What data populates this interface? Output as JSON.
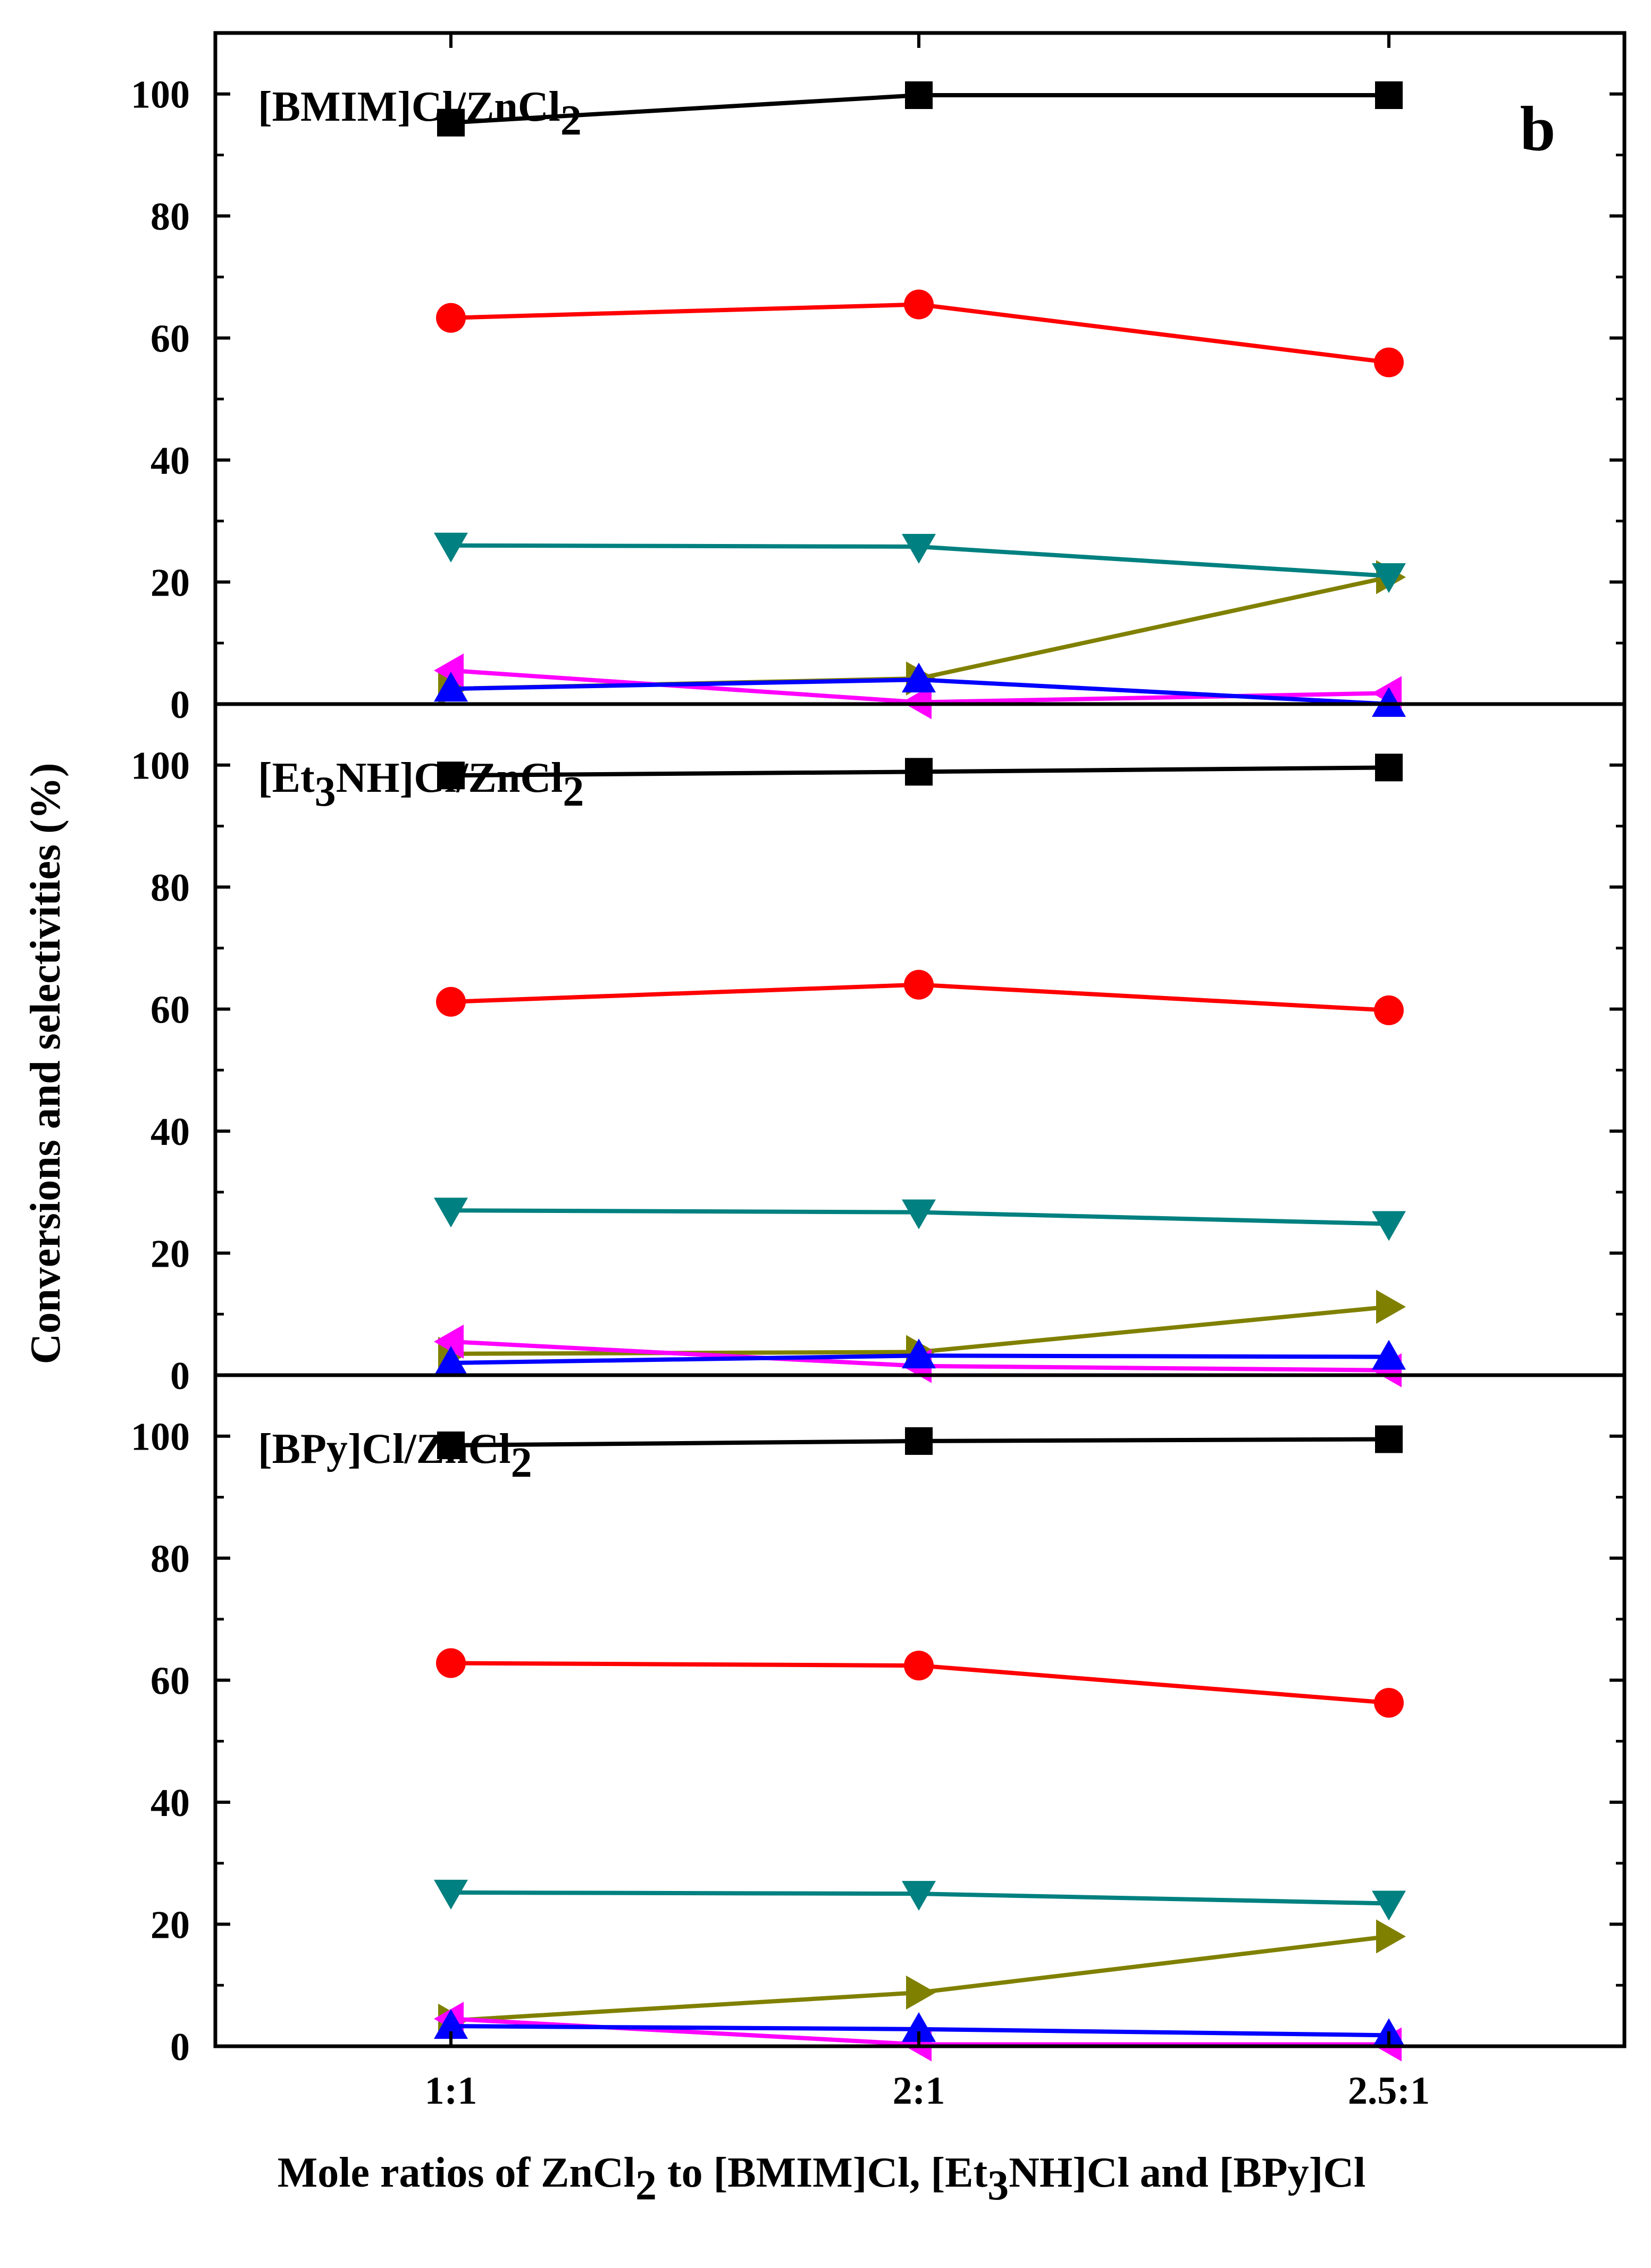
{
  "chart_data": {
    "type": "line",
    "panel_letter": "b",
    "xlabel": {
      "parts": [
        {
          "text": "Mole ratios of ZnCl",
          "sub": false
        },
        {
          "text": "2",
          "sub": true
        },
        {
          "text": " to [BMIM]Cl, [Et",
          "sub": false
        },
        {
          "text": "3",
          "sub": true
        },
        {
          "text": "NH]Cl and [BPy]Cl",
          "sub": false
        }
      ]
    },
    "ylabel": "Conversions and selectivities (%)",
    "categories": [
      "1:1",
      "2:1",
      "2.5:1"
    ],
    "yticks": [
      "0",
      "20",
      "40",
      "60",
      "80",
      "100"
    ],
    "ylim": [
      0,
      110
    ],
    "panels": [
      {
        "title_parts": [
          {
            "text": "[BMIM]Cl/ZnCl",
            "sub": false
          },
          {
            "text": "2",
            "sub": true
          }
        ],
        "series": [
          {
            "name": "black-square",
            "color": "#000000",
            "marker": "square",
            "values": [
              95.3,
              99.8,
              99.8
            ]
          },
          {
            "name": "red-circle",
            "color": "#ff0000",
            "marker": "circle",
            "values": [
              63.3,
              65.5,
              56.0
            ]
          },
          {
            "name": "teal-down-triangle",
            "color": "#008080",
            "marker": "triangle-down",
            "values": [
              26.0,
              25.8,
              21.0
            ]
          },
          {
            "name": "blue-up-triangle",
            "color": "#0000ff",
            "marker": "triangle-up",
            "values": [
              2.5,
              4.0,
              0.0
            ]
          },
          {
            "name": "magenta-left-triangle",
            "color": "#ff00ff",
            "marker": "triangle-left",
            "values": [
              5.5,
              0.3,
              1.8
            ]
          },
          {
            "name": "olive-right-triangle",
            "color": "#808000",
            "marker": "triangle-right",
            "values": [
              2.5,
              4.2,
              20.8
            ]
          }
        ]
      },
      {
        "title_parts": [
          {
            "text": "[Et",
            "sub": false
          },
          {
            "text": "3",
            "sub": true
          },
          {
            "text": "NH]Cl/ZnCl",
            "sub": false
          },
          {
            "text": "2",
            "sub": true
          }
        ],
        "series": [
          {
            "name": "black-square",
            "color": "#000000",
            "marker": "square",
            "values": [
              98.3,
              98.9,
              99.6
            ]
          },
          {
            "name": "red-circle",
            "color": "#ff0000",
            "marker": "circle",
            "values": [
              61.2,
              64.0,
              59.8
            ]
          },
          {
            "name": "teal-down-triangle",
            "color": "#008080",
            "marker": "triangle-down",
            "values": [
              27.0,
              26.7,
              24.8
            ]
          },
          {
            "name": "blue-up-triangle",
            "color": "#0000ff",
            "marker": "triangle-up",
            "values": [
              2.0,
              3.2,
              3.0
            ]
          },
          {
            "name": "magenta-left-triangle",
            "color": "#ff00ff",
            "marker": "triangle-left",
            "values": [
              5.5,
              1.5,
              0.8
            ]
          },
          {
            "name": "olive-right-triangle",
            "color": "#808000",
            "marker": "triangle-right",
            "values": [
              3.5,
              3.8,
              11.2
            ]
          }
        ]
      },
      {
        "title_parts": [
          {
            "text": "[BPy]Cl/ZnCl",
            "sub": false
          },
          {
            "text": "2",
            "sub": true
          }
        ],
        "series": [
          {
            "name": "black-square",
            "color": "#000000",
            "marker": "square",
            "values": [
              98.5,
              99.2,
              99.5
            ]
          },
          {
            "name": "red-circle",
            "color": "#ff0000",
            "marker": "circle",
            "values": [
              62.8,
              62.4,
              56.3
            ]
          },
          {
            "name": "teal-down-triangle",
            "color": "#008080",
            "marker": "triangle-down",
            "values": [
              25.2,
              25.0,
              23.4
            ]
          },
          {
            "name": "blue-up-triangle",
            "color": "#0000ff",
            "marker": "triangle-up",
            "values": [
              3.3,
              2.8,
              1.8
            ]
          },
          {
            "name": "magenta-left-triangle",
            "color": "#ff00ff",
            "marker": "triangle-left",
            "values": [
              4.5,
              0.3,
              0.3
            ]
          },
          {
            "name": "olive-right-triangle",
            "color": "#808000",
            "marker": "triangle-right",
            "values": [
              4.2,
              8.8,
              18.0
            ]
          }
        ]
      }
    ]
  }
}
